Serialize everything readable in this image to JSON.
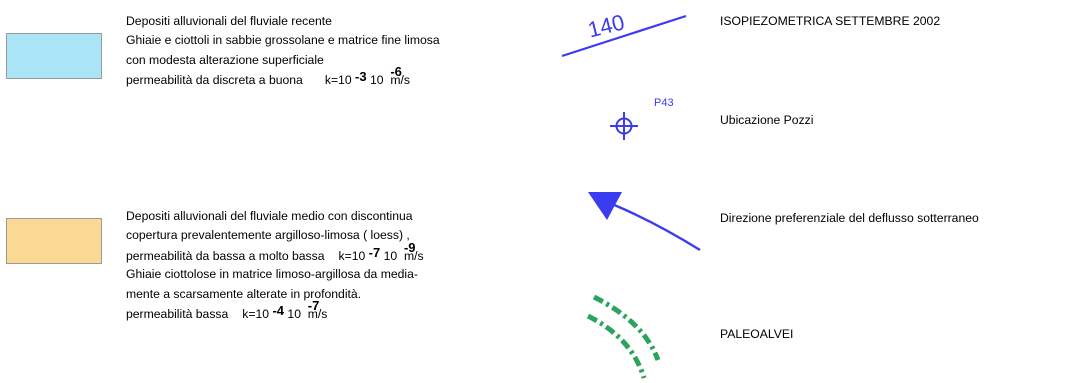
{
  "units": [
    {
      "color": "#a9e4f7",
      "lines": [
        "Depositi alluvionali del fluviale recente",
        "Ghiaie e ciottoli in sabbie grossolane e matrice fine limosa",
        "con modesta alterazione superficiale"
      ],
      "permeability_label": "permeabilità da discreta  a buona",
      "k_prefix": "k=10",
      "exp1": "-3",
      "k_mid": "10",
      "exp2": "-6",
      "unit": "m/s"
    },
    {
      "color": "#fad995",
      "lines_before": [
        "Depositi alluvionali del fluviale medio con discontinua",
        "copertura prevalentemente argilloso-limosa  ( loess)  ,"
      ],
      "permeability_label": "permeabilità da bassa a molto bassa",
      "k_prefix": "k=10",
      "exp1": "-7",
      "k_mid": "10",
      "exp2": "-9",
      "unit": "m/s",
      "lines_after": [
        "Ghiaie ciottolose in matrice limoso-argillosa da media-",
        "mente a scarsamente alterate in profondità."
      ],
      "permeability2_label": "permeabilità bassa",
      "k2_prefix": "k=10",
      "k2_exp1": "-4",
      "k2_mid": "10",
      "k2_exp2": "-7",
      "k2_unit": "m/s"
    }
  ],
  "symbols": [
    {
      "icon": "isopiezometric-line",
      "value_label": "140",
      "label": "ISOPIEZOMETRICA  SETTEMBRE  2002",
      "color": "#3b3bf0"
    },
    {
      "icon": "well-location-icon",
      "value_label": "P43",
      "label": "Ubicazione Pozzi",
      "color": "#3b3bf0"
    },
    {
      "icon": "flow-direction-arrow",
      "label": "Direzione preferenziale del deflusso sotterraneo",
      "color": "#3b3bf0"
    },
    {
      "icon": "paleo-riverbed-icon",
      "label": "PALEOALVEI",
      "color": "#2aa35e"
    }
  ]
}
